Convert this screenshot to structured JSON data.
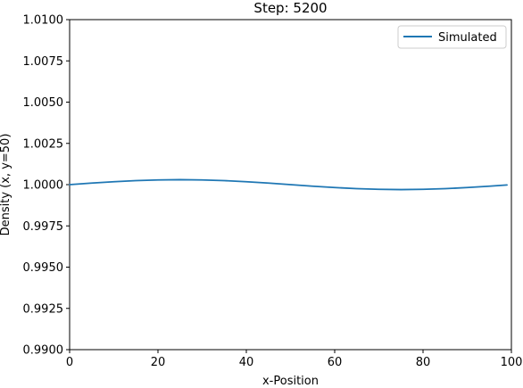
{
  "chart_data": {
    "type": "line",
    "title": "Step: 5200",
    "xlabel": "x-Position",
    "ylabel": "Density (x, y=50)",
    "xlim": [
      0,
      100
    ],
    "ylim": [
      0.99,
      1.01
    ],
    "x_ticks": [
      0,
      20,
      40,
      60,
      80,
      100
    ],
    "x_tick_labels": [
      "0",
      "20",
      "40",
      "60",
      "80",
      "100"
    ],
    "y_ticks": [
      0.99,
      0.9925,
      0.995,
      0.9975,
      1.0,
      1.0025,
      1.005,
      1.0075,
      1.01
    ],
    "y_tick_labels": [
      "0.9900",
      "0.9925",
      "0.9950",
      "0.9975",
      "1.0000",
      "1.0025",
      "1.0050",
      "1.0075",
      "1.0100"
    ],
    "grid": false,
    "legend_position": "top-right",
    "series": [
      {
        "name": "Simulated",
        "color": "#1f77b4",
        "x": [
          0,
          5,
          10,
          15,
          20,
          25,
          30,
          35,
          40,
          45,
          50,
          55,
          60,
          65,
          70,
          75,
          80,
          85,
          90,
          95,
          99
        ],
        "y": [
          1.0,
          1.000093,
          1.000176,
          1.000243,
          1.000285,
          1.0003,
          1.000285,
          1.000243,
          1.000176,
          1.000093,
          1.0,
          0.999907,
          0.999824,
          0.999757,
          0.999715,
          0.9997,
          0.999715,
          0.999757,
          0.999824,
          0.999907,
          0.999981
        ]
      }
    ]
  }
}
